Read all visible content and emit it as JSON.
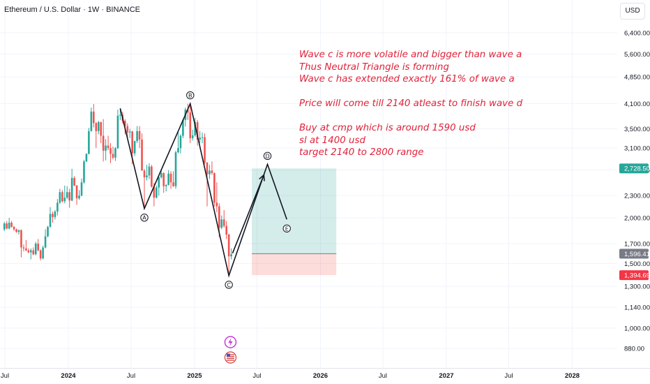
{
  "header": {
    "symbol_title": "Ethereum / U.S. Dollar · 1W · BINANCE",
    "currency_button": "USD"
  },
  "annotation": {
    "lines": [
      "Wave c is more volatile and bigger than wave a",
      "Thus Neutral Triangle is forming",
      "Wave c has extended exactly 161% of wave a",
      "",
      "Price will come till 2140 atleast to finish wave d",
      "",
      "Buy at cmp which is around 1590 usd",
      "sl at 1400 usd",
      "target 2140 to 2800 range"
    ],
    "color": "#e0223a"
  },
  "chart_data": {
    "type": "candlestick",
    "instrument": "Ethereum / U.S. Dollar",
    "interval": "1W",
    "exchange": "BINANCE",
    "y_scale": "log",
    "ylim": [
      820,
      7400
    ],
    "y_ticks": [
      880,
      1000,
      1140,
      1300,
      1500,
      1700,
      2000,
      2300,
      2700,
      3100,
      3500,
      4100,
      4850,
      5600,
      6400
    ],
    "y_tick_labels": [
      "880.00",
      "1,000.00",
      "1,140.00",
      "1,300.00",
      "1,500.00",
      "1,700.00",
      "2,000.00",
      "2,300.00",
      "2,700.00",
      "3,100.00",
      "3,500.00",
      "4,100.00",
      "4,850.00",
      "5,600.00",
      "6,400.00"
    ],
    "x_tick_labels": [
      "Jul",
      "2024",
      "Jul",
      "2025",
      "Jul",
      "2026",
      "Jul",
      "2027",
      "Jul",
      "2028"
    ],
    "x_tick_dates": [
      "2023-07-01",
      "2024-01-01",
      "2024-07-01",
      "2025-01-01",
      "2025-07-01",
      "2026-01-01",
      "2026-07-01",
      "2027-01-01",
      "2027-07-01",
      "2028-01-01"
    ],
    "x_range": [
      "2023-06-26",
      "2028-04-01"
    ],
    "candles": [
      {
        "date": "2023-06-26",
        "open": 1860,
        "high": 1950,
        "low": 1840,
        "close": 1930
      },
      {
        "date": "2023-07-03",
        "open": 1930,
        "high": 1960,
        "low": 1860,
        "close": 1870
      },
      {
        "date": "2023-07-10",
        "open": 1870,
        "high": 2000,
        "low": 1860,
        "close": 1940
      },
      {
        "date": "2023-07-17",
        "open": 1940,
        "high": 1960,
        "low": 1880,
        "close": 1890
      },
      {
        "date": "2023-07-24",
        "open": 1890,
        "high": 1900,
        "low": 1840,
        "close": 1860
      },
      {
        "date": "2023-07-31",
        "open": 1860,
        "high": 1870,
        "low": 1820,
        "close": 1830
      },
      {
        "date": "2023-08-07",
        "open": 1830,
        "high": 1860,
        "low": 1800,
        "close": 1850
      },
      {
        "date": "2023-08-14",
        "open": 1850,
        "high": 1860,
        "low": 1560,
        "close": 1660
      },
      {
        "date": "2023-08-21",
        "open": 1660,
        "high": 1690,
        "low": 1620,
        "close": 1650
      },
      {
        "date": "2023-08-28",
        "open": 1650,
        "high": 1740,
        "low": 1620,
        "close": 1630
      },
      {
        "date": "2023-09-04",
        "open": 1630,
        "high": 1650,
        "low": 1600,
        "close": 1610
      },
      {
        "date": "2023-09-11",
        "open": 1610,
        "high": 1650,
        "low": 1540,
        "close": 1630
      },
      {
        "date": "2023-09-18",
        "open": 1630,
        "high": 1660,
        "low": 1580,
        "close": 1590
      },
      {
        "date": "2023-09-25",
        "open": 1590,
        "high": 1720,
        "low": 1580,
        "close": 1700
      },
      {
        "date": "2023-10-02",
        "open": 1700,
        "high": 1750,
        "low": 1620,
        "close": 1630
      },
      {
        "date": "2023-10-09",
        "open": 1630,
        "high": 1640,
        "low": 1530,
        "close": 1550
      },
      {
        "date": "2023-10-16",
        "open": 1550,
        "high": 1680,
        "low": 1540,
        "close": 1660
      },
      {
        "date": "2023-10-23",
        "open": 1660,
        "high": 1860,
        "low": 1650,
        "close": 1780
      },
      {
        "date": "2023-10-30",
        "open": 1780,
        "high": 1900,
        "low": 1770,
        "close": 1890
      },
      {
        "date": "2023-11-06",
        "open": 1890,
        "high": 2140,
        "low": 1880,
        "close": 2050
      },
      {
        "date": "2023-11-13",
        "open": 2050,
        "high": 2080,
        "low": 1940,
        "close": 2010
      },
      {
        "date": "2023-11-20",
        "open": 2010,
        "high": 2100,
        "low": 1980,
        "close": 2080
      },
      {
        "date": "2023-11-27",
        "open": 2080,
        "high": 2250,
        "low": 2030,
        "close": 2200
      },
      {
        "date": "2023-12-04",
        "open": 2200,
        "high": 2400,
        "low": 2180,
        "close": 2350
      },
      {
        "date": "2023-12-11",
        "open": 2350,
        "high": 2380,
        "low": 2200,
        "close": 2220
      },
      {
        "date": "2023-12-18",
        "open": 2220,
        "high": 2450,
        "low": 2190,
        "close": 2270
      },
      {
        "date": "2023-12-25",
        "open": 2270,
        "high": 2440,
        "low": 2250,
        "close": 2350
      },
      {
        "date": "2024-01-01",
        "open": 2350,
        "high": 2400,
        "low": 2130,
        "close": 2230
      },
      {
        "date": "2024-01-08",
        "open": 2230,
        "high": 2720,
        "low": 2220,
        "close": 2570
      },
      {
        "date": "2024-01-15",
        "open": 2570,
        "high": 2600,
        "low": 2440,
        "close": 2450
      },
      {
        "date": "2024-01-22",
        "open": 2450,
        "high": 2460,
        "low": 2170,
        "close": 2260
      },
      {
        "date": "2024-01-29",
        "open": 2260,
        "high": 2380,
        "low": 2240,
        "close": 2300
      },
      {
        "date": "2024-02-05",
        "open": 2300,
        "high": 2560,
        "low": 2290,
        "close": 2500
      },
      {
        "date": "2024-02-12",
        "open": 2500,
        "high": 2880,
        "low": 2480,
        "close": 2850
      },
      {
        "date": "2024-02-19",
        "open": 2850,
        "high": 3000,
        "low": 2840,
        "close": 2990
      },
      {
        "date": "2024-02-26",
        "open": 2990,
        "high": 3520,
        "low": 2980,
        "close": 3450
      },
      {
        "date": "2024-03-04",
        "open": 3450,
        "high": 4000,
        "low": 3440,
        "close": 3900
      },
      {
        "date": "2024-03-11",
        "open": 3900,
        "high": 4090,
        "low": 3530,
        "close": 3630
      },
      {
        "date": "2024-03-18",
        "open": 3630,
        "high": 3650,
        "low": 3100,
        "close": 3450
      },
      {
        "date": "2024-03-25",
        "open": 3450,
        "high": 3680,
        "low": 3380,
        "close": 3650
      },
      {
        "date": "2024-04-01",
        "open": 3650,
        "high": 3660,
        "low": 3200,
        "close": 3350
      },
      {
        "date": "2024-04-08",
        "open": 3350,
        "high": 3720,
        "low": 2850,
        "close": 3050
      },
      {
        "date": "2024-04-15",
        "open": 3050,
        "high": 3280,
        "low": 2870,
        "close": 3150
      },
      {
        "date": "2024-04-22",
        "open": 3150,
        "high": 3350,
        "low": 3060,
        "close": 3100
      },
      {
        "date": "2024-04-29",
        "open": 3100,
        "high": 3200,
        "low": 2820,
        "close": 2990
      },
      {
        "date": "2024-05-06",
        "open": 2990,
        "high": 3130,
        "low": 2890,
        "close": 2920
      },
      {
        "date": "2024-05-13",
        "open": 2920,
        "high": 3120,
        "low": 2860,
        "close": 3100
      },
      {
        "date": "2024-05-20",
        "open": 3100,
        "high": 3950,
        "low": 3080,
        "close": 3800
      },
      {
        "date": "2024-05-27",
        "open": 3800,
        "high": 3980,
        "low": 3700,
        "close": 3820
      },
      {
        "date": "2024-06-03",
        "open": 3820,
        "high": 3890,
        "low": 3620,
        "close": 3680
      },
      {
        "date": "2024-06-10",
        "open": 3680,
        "high": 3720,
        "low": 3380,
        "close": 3560
      },
      {
        "date": "2024-06-17",
        "open": 3560,
        "high": 3620,
        "low": 3300,
        "close": 3420
      },
      {
        "date": "2024-06-24",
        "open": 3420,
        "high": 3500,
        "low": 3300,
        "close": 3440
      },
      {
        "date": "2024-07-01",
        "open": 3440,
        "high": 3460,
        "low": 2800,
        "close": 3000
      },
      {
        "date": "2024-07-08",
        "open": 3000,
        "high": 3250,
        "low": 2950,
        "close": 3240
      },
      {
        "date": "2024-07-15",
        "open": 3240,
        "high": 3560,
        "low": 3200,
        "close": 3450
      },
      {
        "date": "2024-07-22",
        "open": 3450,
        "high": 3560,
        "low": 3100,
        "close": 3270
      },
      {
        "date": "2024-07-29",
        "open": 3270,
        "high": 3400,
        "low": 2700,
        "close": 2690
      },
      {
        "date": "2024-08-05",
        "open": 2690,
        "high": 2720,
        "low": 2120,
        "close": 2580
      },
      {
        "date": "2024-08-12",
        "open": 2580,
        "high": 2790,
        "low": 2530,
        "close": 2610
      },
      {
        "date": "2024-08-19",
        "open": 2610,
        "high": 2820,
        "low": 2550,
        "close": 2760
      },
      {
        "date": "2024-08-26",
        "open": 2760,
        "high": 2790,
        "low": 2420,
        "close": 2430
      },
      {
        "date": "2024-09-02",
        "open": 2430,
        "high": 2490,
        "low": 2150,
        "close": 2270
      },
      {
        "date": "2024-09-09",
        "open": 2270,
        "high": 2450,
        "low": 2260,
        "close": 2420
      },
      {
        "date": "2024-09-16",
        "open": 2420,
        "high": 2600,
        "low": 2300,
        "close": 2580
      },
      {
        "date": "2024-09-23",
        "open": 2580,
        "high": 2700,
        "low": 2560,
        "close": 2650
      },
      {
        "date": "2024-09-30",
        "open": 2650,
        "high": 2660,
        "low": 2340,
        "close": 2440
      },
      {
        "date": "2024-10-07",
        "open": 2440,
        "high": 2470,
        "low": 2360,
        "close": 2460
      },
      {
        "date": "2024-10-14",
        "open": 2460,
        "high": 2700,
        "low": 2450,
        "close": 2640
      },
      {
        "date": "2024-10-21",
        "open": 2640,
        "high": 2680,
        "low": 2400,
        "close": 2500
      },
      {
        "date": "2024-10-28",
        "open": 2500,
        "high": 2680,
        "low": 2430,
        "close": 2440
      },
      {
        "date": "2024-11-04",
        "open": 2440,
        "high": 3050,
        "low": 2400,
        "close": 3020
      },
      {
        "date": "2024-11-11",
        "open": 3020,
        "high": 3440,
        "low": 3000,
        "close": 3100
      },
      {
        "date": "2024-11-18",
        "open": 3100,
        "high": 3380,
        "low": 3000,
        "close": 3350
      },
      {
        "date": "2024-11-25",
        "open": 3350,
        "high": 3720,
        "low": 3300,
        "close": 3700
      },
      {
        "date": "2024-12-02",
        "open": 3700,
        "high": 4000,
        "low": 3550,
        "close": 3950
      },
      {
        "date": "2024-12-09",
        "open": 3950,
        "high": 4100,
        "low": 3700,
        "close": 3880
      },
      {
        "date": "2024-12-16",
        "open": 3880,
        "high": 4050,
        "low": 3200,
        "close": 3300
      },
      {
        "date": "2024-12-23",
        "open": 3300,
        "high": 3480,
        "low": 3250,
        "close": 3360
      },
      {
        "date": "2024-12-30",
        "open": 3360,
        "high": 3750,
        "low": 3330,
        "close": 3650
      },
      {
        "date": "2025-01-06",
        "open": 3650,
        "high": 3700,
        "low": 3150,
        "close": 3270
      },
      {
        "date": "2025-01-13",
        "open": 3270,
        "high": 3450,
        "low": 3200,
        "close": 3310
      },
      {
        "date": "2025-01-20",
        "open": 3310,
        "high": 3420,
        "low": 3200,
        "close": 3320
      },
      {
        "date": "2025-01-27",
        "open": 3320,
        "high": 3400,
        "low": 2800,
        "close": 2830
      },
      {
        "date": "2025-02-03",
        "open": 2830,
        "high": 2840,
        "low": 2150,
        "close": 2630
      },
      {
        "date": "2025-02-10",
        "open": 2630,
        "high": 2790,
        "low": 2550,
        "close": 2690
      },
      {
        "date": "2025-02-17",
        "open": 2690,
        "high": 2850,
        "low": 2620,
        "close": 2650
      },
      {
        "date": "2025-02-24",
        "open": 2650,
        "high": 2660,
        "low": 2150,
        "close": 2200
      },
      {
        "date": "2025-03-03",
        "open": 2200,
        "high": 2500,
        "low": 2070,
        "close": 2150
      },
      {
        "date": "2025-03-10",
        "open": 2150,
        "high": 2190,
        "low": 1770,
        "close": 1880
      },
      {
        "date": "2025-03-17",
        "open": 1880,
        "high": 2030,
        "low": 1860,
        "close": 1980
      },
      {
        "date": "2025-03-24",
        "open": 1980,
        "high": 2100,
        "low": 1880,
        "close": 1900
      },
      {
        "date": "2025-03-31",
        "open": 1900,
        "high": 1960,
        "low": 1750,
        "close": 1800
      },
      {
        "date": "2025-04-07",
        "open": 1800,
        "high": 1810,
        "low": 1390,
        "close": 1570
      },
      {
        "date": "2025-04-14",
        "open": 1570,
        "high": 1650,
        "low": 1540,
        "close": 1590
      }
    ],
    "waves": [
      {
        "label": "A",
        "date": "2024-08-05",
        "price": 2120,
        "position": "below"
      },
      {
        "label": "B",
        "date": "2024-12-16",
        "price": 4100,
        "position": "above"
      },
      {
        "label": "C",
        "date": "2025-04-07",
        "price": 1390,
        "position": "below"
      },
      {
        "label": "D",
        "date": "2025-07-28",
        "price": 2800,
        "position": "above"
      },
      {
        "label": "E",
        "date": "2025-09-22",
        "price": 1980,
        "position": "below"
      }
    ],
    "wave_path": [
      {
        "date": "2024-05-27",
        "price": 3980
      },
      {
        "date": "2024-08-05",
        "price": 2120
      },
      {
        "date": "2024-12-16",
        "price": 4100
      },
      {
        "date": "2025-04-07",
        "price": 1390
      },
      {
        "date": "2025-07-28",
        "price": 2800
      },
      {
        "date": "2025-09-22",
        "price": 1980
      }
    ],
    "projection_arrow": {
      "from": {
        "date": "2025-04-21",
        "price": 1600
      },
      "to": {
        "date": "2025-07-21",
        "price": 2620
      }
    },
    "position": {
      "type": "long",
      "start_date": "2025-06-16",
      "end_date": "2026-02-16",
      "entry": 1596.41,
      "target": 2728.5,
      "stop": 1394.69,
      "profit_color": "#26a69a",
      "loss_color": "#ef5350"
    },
    "price_tags": [
      {
        "value": 2728.5,
        "label": "2,728.50",
        "color": "#26a69a"
      },
      {
        "value": 1596.41,
        "label": "1,596.41",
        "color": "#787b86"
      },
      {
        "value": 1394.69,
        "label": "1,394.69",
        "color": "#f23645"
      }
    ],
    "colors": {
      "up": "#26a69a",
      "down": "#ef5350"
    }
  }
}
